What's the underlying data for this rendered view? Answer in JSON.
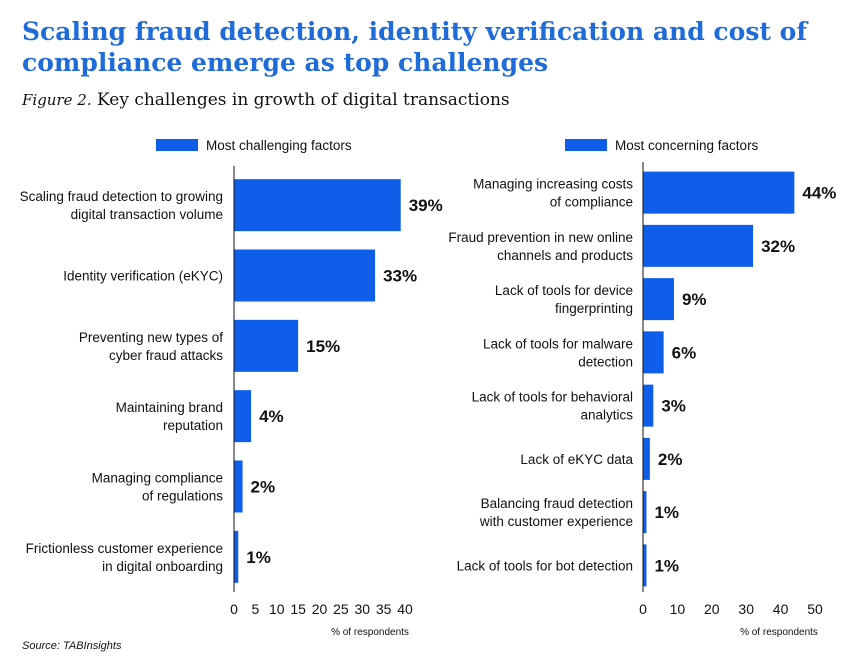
{
  "headline": "Scaling fraud detection, identity verification and cost of compliance emerge as top challenges",
  "subtitle_prefix": "Figure 2.",
  "subtitle": "Key challenges in growth of digital transactions",
  "source": "Source: TABInsights",
  "colors": {
    "bar": "#0f5eea",
    "headline": "#1f6bd9"
  },
  "chart_data": [
    {
      "type": "bar",
      "orientation": "horizontal",
      "legend": "Most challenging factors",
      "legend_position": "top",
      "xlabel": "% of respondents",
      "xlim": [
        0,
        40
      ],
      "xticks": [
        0,
        5,
        10,
        15,
        20,
        25,
        30,
        35,
        40
      ],
      "grid": false,
      "categories": [
        [
          "Scaling fraud detection to growing",
          "digital transaction volume"
        ],
        [
          "Identity verification (eKYC)"
        ],
        [
          "Preventing new types of",
          "cyber fraud attacks"
        ],
        [
          "Maintaining brand",
          "reputation"
        ],
        [
          "Managing compliance",
          "of regulations"
        ],
        [
          "Frictionless customer experience",
          "in digital onboarding"
        ]
      ],
      "values": [
        39,
        33,
        15,
        4,
        2,
        1
      ],
      "value_labels": [
        "39%",
        "33%",
        "15%",
        "4%",
        "2%",
        "1%"
      ]
    },
    {
      "type": "bar",
      "orientation": "horizontal",
      "legend": "Most concerning factors",
      "legend_position": "top",
      "xlabel": "% of respondents",
      "xlim": [
        0,
        50
      ],
      "xticks": [
        0,
        10,
        20,
        30,
        40,
        50
      ],
      "grid": false,
      "categories": [
        [
          "Managing increasing costs",
          "of compliance"
        ],
        [
          "Fraud prevention in new online",
          "channels and products"
        ],
        [
          "Lack of tools for device",
          "fingerprinting"
        ],
        [
          "Lack of tools for malware",
          "detection"
        ],
        [
          "Lack of tools for behavioral",
          "analytics"
        ],
        [
          "Lack of eKYC data"
        ],
        [
          "Balancing fraud detection",
          "with customer experience"
        ],
        [
          "Lack of tools for bot detection"
        ]
      ],
      "values": [
        44,
        32,
        9,
        6,
        3,
        2,
        1,
        1
      ],
      "value_labels": [
        "44%",
        "32%",
        "9%",
        "6%",
        "3%",
        "2%",
        "1%",
        "1%"
      ]
    }
  ]
}
